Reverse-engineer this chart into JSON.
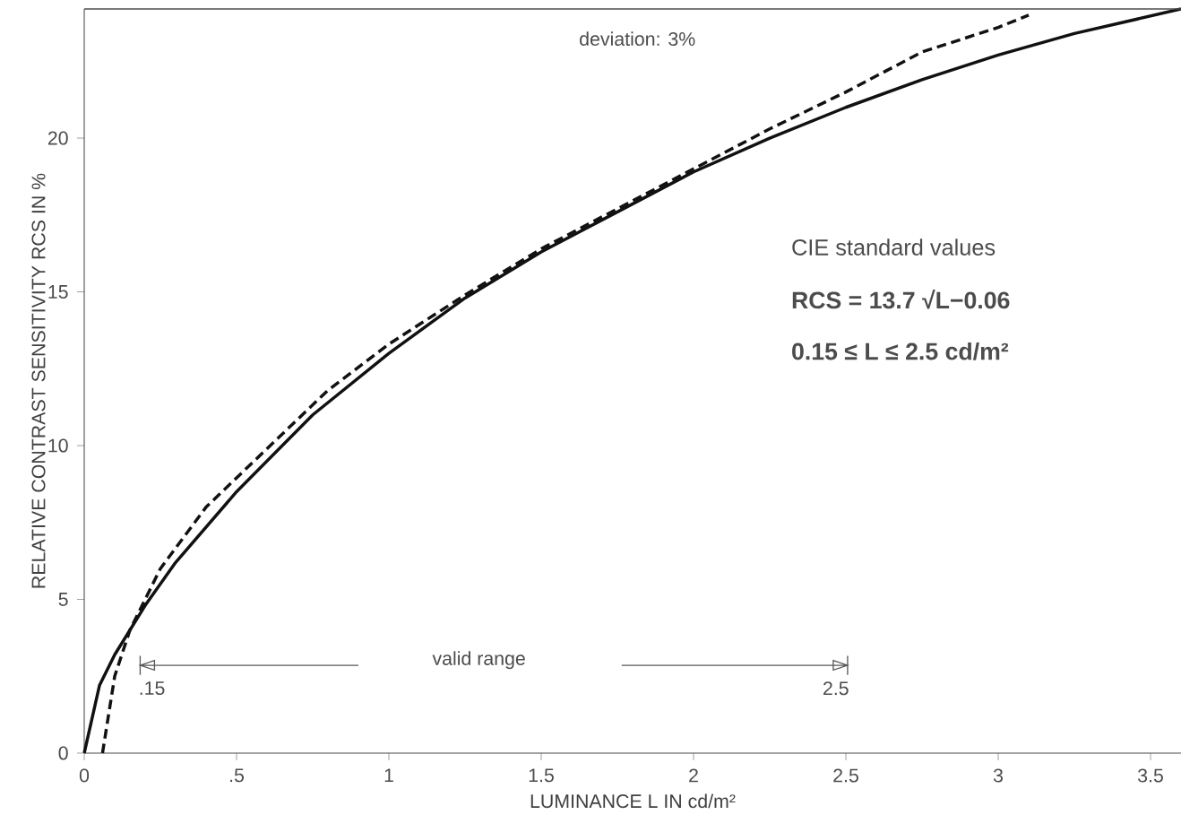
{
  "chart_data": {
    "type": "line",
    "xlabel": "LUMINANCE  L IN cd/m²",
    "ylabel": "RELATIVE CONTRAST SENSITIVITY RCS IN %",
    "xlim": [
      0,
      3.6
    ],
    "ylim": [
      0,
      24.2
    ],
    "xticks": [
      0,
      {
        "value": 0.5,
        "label": ".5"
      },
      1,
      1.5,
      2,
      2.5,
      3,
      3.5
    ],
    "yticks": [
      0,
      5,
      10,
      15,
      20
    ],
    "grid": false,
    "marker": "none",
    "series": [
      {
        "color": "#111111",
        "line_style": "solid",
        "x": [
          0,
          0.05,
          0.1,
          0.2,
          0.3,
          0.5,
          0.75,
          1.0,
          1.25,
          1.5,
          1.75,
          2.0,
          2.25,
          2.5,
          2.75,
          3.0,
          3.25,
          3.6
        ],
        "values": [
          0,
          2.2,
          3.2,
          4.8,
          6.2,
          8.5,
          11.0,
          13.0,
          14.8,
          16.3,
          17.6,
          18.9,
          20.0,
          21.0,
          21.9,
          22.7,
          23.4,
          24.2
        ]
      },
      {
        "color": "#111111",
        "line_style": "dashed",
        "x": [
          0.06,
          0.1,
          0.15,
          0.25,
          0.4,
          0.6,
          0.8,
          1.0,
          1.25,
          1.5,
          1.75,
          2.0,
          2.25,
          2.5,
          2.75,
          3.0,
          3.1
        ],
        "values": [
          0,
          2.5,
          4.0,
          6.0,
          8.0,
          9.9,
          11.8,
          13.3,
          14.9,
          16.4,
          17.7,
          19.0,
          20.3,
          21.5,
          22.8,
          23.6,
          24.0
        ]
      }
    ],
    "annotations": [
      "deviation: 3%",
      ".15",
      "2.5",
      "valid range",
      "CIE standard values",
      "RCS = 13.7 √L−0.06",
      "0.15 ≤ L ≤ 2.5 cd/m²"
    ]
  }
}
